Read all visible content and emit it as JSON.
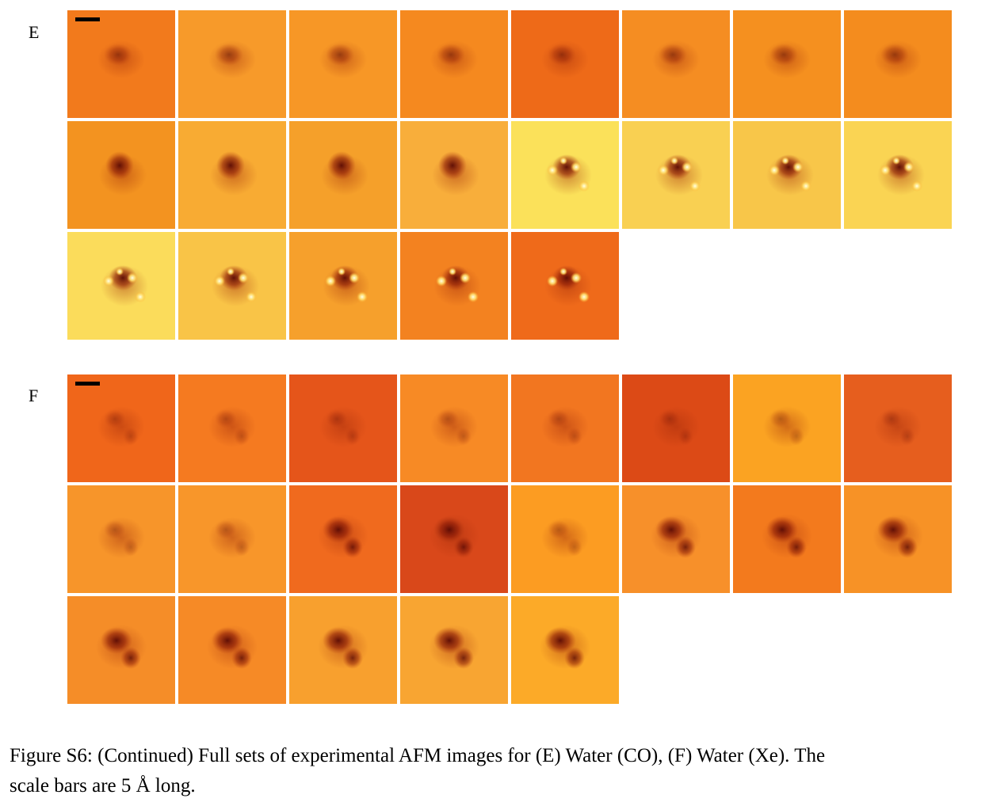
{
  "figure": {
    "caption_line1": "Figure S6: (Continued) Full sets of experimental AFM images for (E) Water (CO), (F) Water (Xe). The",
    "caption_line2": "scale bars are 5 Å long."
  },
  "panels": [
    {
      "label": "E",
      "probe": "CO",
      "image_count": 21,
      "backgrounds": [
        "#f27a1c",
        "#f79a2a",
        "#f79726",
        "#f5891f",
        "#ee6a18",
        "#f58d22",
        "#f5901f",
        "#f48c1e",
        "#f39320",
        "#f8ab33",
        "#f5a02a",
        "#f8ae3b",
        "#fbe15a",
        "#f9d052",
        "#f8c649",
        "#fad453",
        "#fbdc5b",
        "#f9c447",
        "#f6a02c",
        "#f38220",
        "#ef6a1a"
      ],
      "features": [
        "dim",
        "dim",
        "dim",
        "dim",
        "dim",
        "dim",
        "dim",
        "dim",
        "dark",
        "dark",
        "dark",
        "dark",
        "bright",
        "bright",
        "bright",
        "bright",
        "bright",
        "bright",
        "bright",
        "bright",
        "bright"
      ]
    },
    {
      "label": "F",
      "probe": "Xe",
      "image_count": 21,
      "backgrounds": [
        "#f0661a",
        "#f57a20",
        "#e5551a",
        "#f78a25",
        "#f27620",
        "#dc4a16",
        "#fba322",
        "#e65e1e",
        "#f7952a",
        "#f8962a",
        "#f06a1e",
        "#d9481a",
        "#fc9c22",
        "#f7902a",
        "#f37a1d",
        "#f79226",
        "#f58d28",
        "#f68a26",
        "#f8a02e",
        "#f8a532",
        "#fcaa28"
      ],
      "features": [
        "faint",
        "faint",
        "faint",
        "faint",
        "faint",
        "faint",
        "faint",
        "faint",
        "faint",
        "faint",
        "blob",
        "blob",
        "faint",
        "blob",
        "blob",
        "blob",
        "blob",
        "blob",
        "blob",
        "blob",
        "blob"
      ]
    }
  ]
}
